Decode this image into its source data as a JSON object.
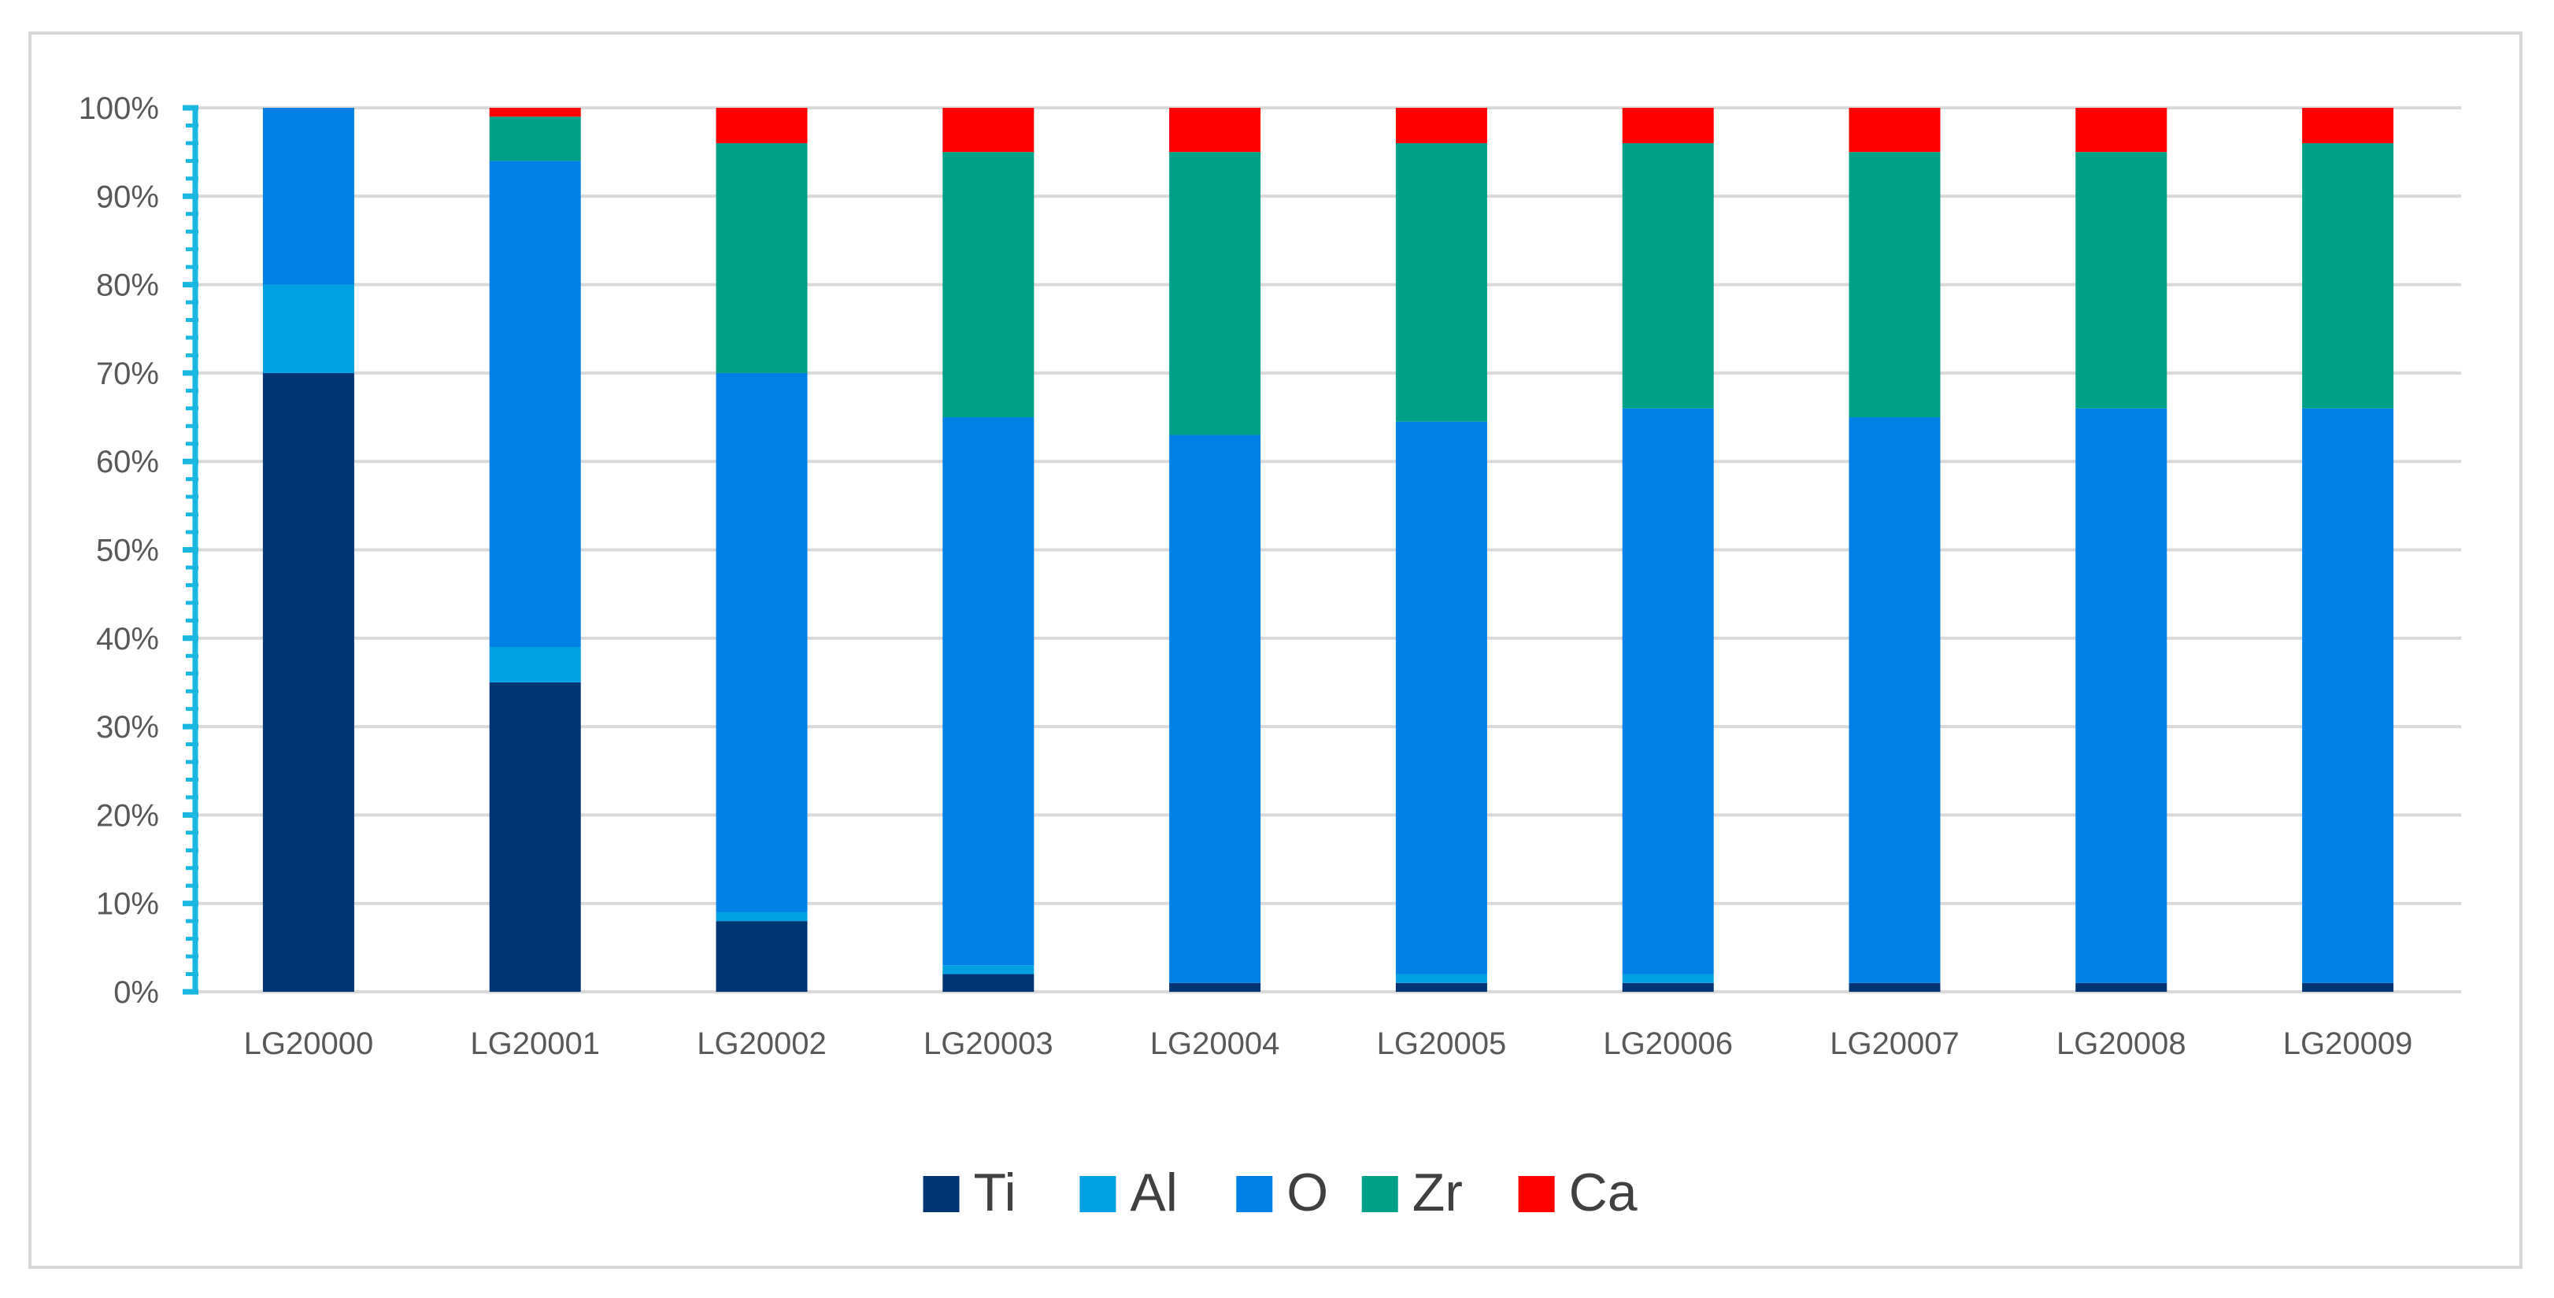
{
  "chart_data": {
    "type": "bar",
    "stacked": "percent",
    "title": "",
    "xlabel": "",
    "ylabel": "",
    "ylim": [
      0,
      100
    ],
    "y_ticks": [
      "0%",
      "10%",
      "20%",
      "30%",
      "40%",
      "50%",
      "60%",
      "70%",
      "80%",
      "90%",
      "100%"
    ],
    "grid": true,
    "legend": "bottom",
    "categories": [
      "LG20000",
      "LG20001",
      "LG20002",
      "LG20003",
      "LG20004",
      "LG20005",
      "LG20006",
      "LG20007",
      "LG20008",
      "LG20009"
    ],
    "series": [
      {
        "name": "Ti",
        "color": "#003472",
        "values": [
          70,
          35,
          8,
          2,
          1,
          1,
          1,
          1,
          1,
          1
        ]
      },
      {
        "name": "Al",
        "color": "#00a0e1",
        "values": [
          10,
          4,
          1,
          1,
          0,
          1,
          1,
          0,
          0,
          0
        ]
      },
      {
        "name": "O",
        "color": "#0080e4",
        "values": [
          20,
          55,
          61,
          62,
          62,
          62.5,
          64,
          64,
          65,
          65
        ]
      },
      {
        "name": "Zr",
        "color": "#00a187",
        "values": [
          0,
          5,
          26,
          30,
          32,
          31.5,
          30,
          30,
          29,
          30
        ]
      },
      {
        "name": "Ca",
        "color": "#ff0000",
        "values": [
          0,
          1,
          4,
          5,
          5,
          4,
          4,
          5,
          5,
          4
        ]
      }
    ]
  }
}
